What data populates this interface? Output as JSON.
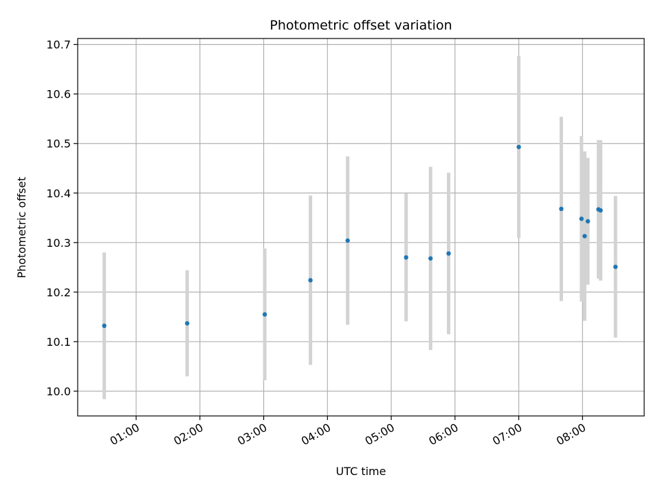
{
  "chart_data": {
    "type": "scatter",
    "title": "Photometric offset variation",
    "xlabel": "UTC time",
    "ylabel": "Photometric offset",
    "x_axis": "time",
    "xlim": [
      "00:05",
      "08:58"
    ],
    "ylim": [
      9.95,
      10.712
    ],
    "grid": true,
    "x_tick_labels": [
      "01:00",
      "02:00",
      "03:00",
      "04:00",
      "05:00",
      "06:00",
      "07:00",
      "08:00"
    ],
    "y_tick_labels": [
      "10.0",
      "10.1",
      "10.2",
      "10.3",
      "10.4",
      "10.5",
      "10.6",
      "10.7"
    ],
    "y_ticks": [
      10.0,
      10.1,
      10.2,
      10.3,
      10.4,
      10.5,
      10.6,
      10.7
    ],
    "x_ticks": [
      "01:00",
      "02:00",
      "03:00",
      "04:00",
      "05:00",
      "06:00",
      "07:00",
      "08:00"
    ],
    "points": [
      {
        "x": "00:30",
        "y": 10.132,
        "yerr": 0.148
      },
      {
        "x": "01:48",
        "y": 10.137,
        "yerr": 0.107
      },
      {
        "x": "03:01",
        "y": 10.155,
        "yerr": 0.133
      },
      {
        "x": "03:44",
        "y": 10.224,
        "yerr": 0.171
      },
      {
        "x": "04:19",
        "y": 10.304,
        "yerr": 0.17
      },
      {
        "x": "05:14",
        "y": 10.27,
        "yerr": 0.129
      },
      {
        "x": "05:37",
        "y": 10.268,
        "yerr": 0.185
      },
      {
        "x": "05:54",
        "y": 10.278,
        "yerr": 0.163
      },
      {
        "x": "07:00",
        "y": 10.493,
        "yerr": 0.184
      },
      {
        "x": "07:40",
        "y": 10.368,
        "yerr": 0.186
      },
      {
        "x": "07:59",
        "y": 10.348,
        "yerr": 0.167
      },
      {
        "x": "08:02",
        "y": 10.313,
        "yerr": 0.171
      },
      {
        "x": "08:05",
        "y": 10.343,
        "yerr": 0.128
      },
      {
        "x": "08:15",
        "y": 10.367,
        "yerr": 0.14
      },
      {
        "x": "08:17",
        "y": 10.365,
        "yerr": 0.142
      },
      {
        "x": "08:31",
        "y": 10.251,
        "yerr": 0.143
      }
    ],
    "colors": {
      "marker": "#1f77b4",
      "errorbar": "#d3d3d3",
      "grid": "#b0b0b0"
    }
  }
}
